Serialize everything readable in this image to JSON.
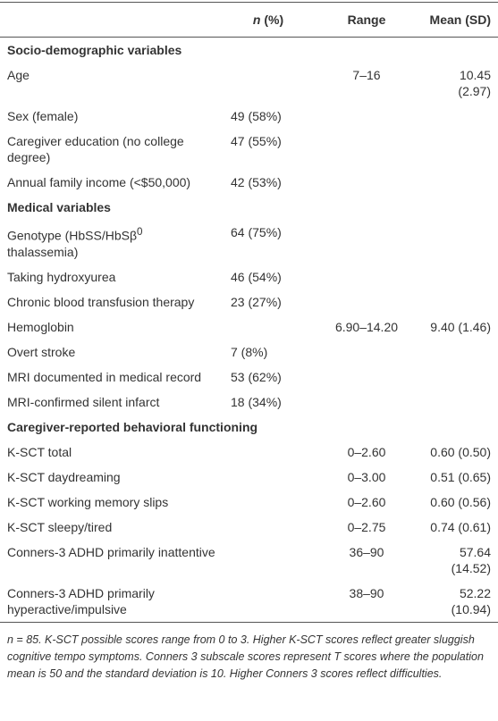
{
  "table": {
    "columns": [
      {
        "italic": "n",
        "text": " (%)"
      },
      "Range",
      "Mean (SD)"
    ],
    "sections": [
      {
        "title": "Socio-demographic variables",
        "rows": [
          {
            "label": "Age",
            "range": "7–16",
            "mean": "10.45 (2.97)"
          },
          {
            "label": "Sex (female)",
            "n": "49 (58%)"
          },
          {
            "label": "Caregiver education (no college degree)",
            "n": "47 (55%)"
          },
          {
            "label": "Annual family income (<$50,000)",
            "n": "42 (53%)"
          }
        ]
      },
      {
        "title": "Medical variables",
        "rows": [
          {
            "label": {
              "text": "Genotype (HbSS/HbSβ",
              "sup": "0",
              "tail": " thalassemia)"
            },
            "n": "64 (75%)"
          },
          {
            "label": "Taking hydroxyurea",
            "n": "46 (54%)"
          },
          {
            "label": "Chronic blood transfusion therapy",
            "n": "23 (27%)"
          },
          {
            "label": "Hemoglobin",
            "range": "6.90–14.20",
            "mean": "9.40 (1.46)"
          },
          {
            "label": "Overt stroke",
            "n": "7 (8%)"
          },
          {
            "label": "MRI documented in medical record",
            "n": "53 (62%)"
          },
          {
            "label": "MRI-confirmed silent infarct",
            "n": "18 (34%)"
          }
        ]
      },
      {
        "title": "Caregiver-reported behavioral functioning",
        "rows": [
          {
            "label": "K-SCT total",
            "range": "0–2.60",
            "mean": "0.60 (0.50)"
          },
          {
            "label": "K-SCT daydreaming",
            "range": "0–3.00",
            "mean": "0.51 (0.65)"
          },
          {
            "label": "K-SCT working memory slips",
            "range": "0–2.60",
            "mean": "0.60 (0.56)"
          },
          {
            "label": "K-SCT sleepy/tired",
            "range": "0–2.75",
            "mean": "0.74 (0.61)"
          },
          {
            "label": "Conners-3 ADHD primarily inattentive",
            "range": "36–90",
            "mean": "57.64 (14.52)"
          },
          {
            "label": "Conners-3 ADHD primarily hyperactive/impulsive",
            "range": "38–90",
            "mean": "52.22 (10.94)"
          }
        ]
      }
    ],
    "footnote": "n = 85. K-SCT possible scores range from 0 to 3. Higher K-SCT scores reflect greater sluggish cognitive tempo symptoms. Conners 3 subscale scores represent T scores where the population mean is 50 and the standard deviation is 10. Higher Conners 3 scores reflect difficulties."
  }
}
